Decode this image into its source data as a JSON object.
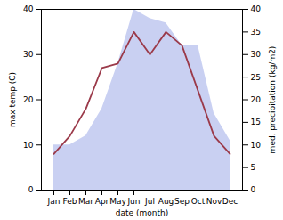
{
  "chart_data": {
    "type": "line",
    "xlabel": "date (month)",
    "ylabel": "max temp (C)",
    "y2label": "med. precipitation (kg/m2)",
    "categories": [
      "Jan",
      "Feb",
      "Mar",
      "Apr",
      "May",
      "Jun",
      "Jul",
      "Aug",
      "Sep",
      "Oct",
      "Nov",
      "Dec"
    ],
    "series": [
      {
        "type": "area",
        "axis": "y2",
        "color": "#c0c8f0",
        "values": [
          10,
          10,
          12,
          18,
          28,
          40,
          38,
          37,
          32,
          32,
          17,
          11
        ]
      },
      {
        "type": "line",
        "color": "#9b3a4a",
        "values": [
          8,
          12,
          18,
          27,
          28,
          35,
          30,
          35,
          32,
          22,
          12,
          8
        ]
      }
    ],
    "ylim": [
      0,
      40
    ],
    "yticks": [
      0,
      10,
      20,
      30,
      40
    ],
    "y2lim": [
      0,
      40
    ],
    "y2ticks": [
      0,
      5,
      10,
      15,
      20,
      25,
      30,
      35,
      40
    ]
  }
}
